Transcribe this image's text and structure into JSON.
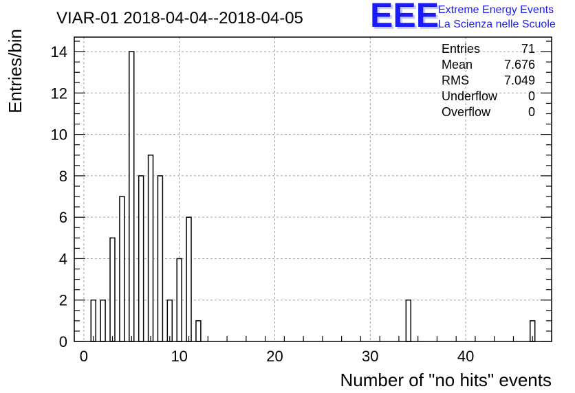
{
  "chart_data": {
    "type": "bar",
    "title": "VIAR-01 2018-04-04--2018-04-05",
    "xlabel": "Number of \"no hits\" events",
    "ylabel": "Entries/bin",
    "xlim": [
      -1,
      49
    ],
    "ylim": [
      0,
      14.7
    ],
    "xticks": [
      0,
      10,
      20,
      30,
      40
    ],
    "yticks": [
      0,
      2,
      4,
      6,
      8,
      10,
      12,
      14
    ],
    "grid": true,
    "bin_width": 0.5,
    "bins": [
      {
        "x": 1,
        "count": 2
      },
      {
        "x": 2,
        "count": 2
      },
      {
        "x": 3,
        "count": 5
      },
      {
        "x": 4,
        "count": 7
      },
      {
        "x": 5,
        "count": 14
      },
      {
        "x": 6,
        "count": 8
      },
      {
        "x": 7,
        "count": 9
      },
      {
        "x": 8,
        "count": 8
      },
      {
        "x": 9,
        "count": 2
      },
      {
        "x": 10,
        "count": 4
      },
      {
        "x": 11,
        "count": 6
      },
      {
        "x": 12,
        "count": 1
      },
      {
        "x": 34,
        "count": 2
      },
      {
        "x": 47,
        "count": 1
      }
    ],
    "stats": [
      {
        "label": "Entries",
        "value": "71"
      },
      {
        "label": "Mean",
        "value": "7.676"
      },
      {
        "label": "RMS",
        "value": "7.049"
      },
      {
        "label": "Underflow",
        "value": "0"
      },
      {
        "label": "Overflow",
        "value": "0"
      }
    ],
    "stats_placement": "top-right"
  },
  "logo": {
    "mark": "EEE",
    "line1": "Extreme Energy Events",
    "line2": "La Scienza nelle Scuole",
    "color": "#1a1aff"
  },
  "colors": {
    "bar_fill": "#ffffff",
    "bar_stroke": "#000000",
    "grid": "#a0a0a0"
  }
}
